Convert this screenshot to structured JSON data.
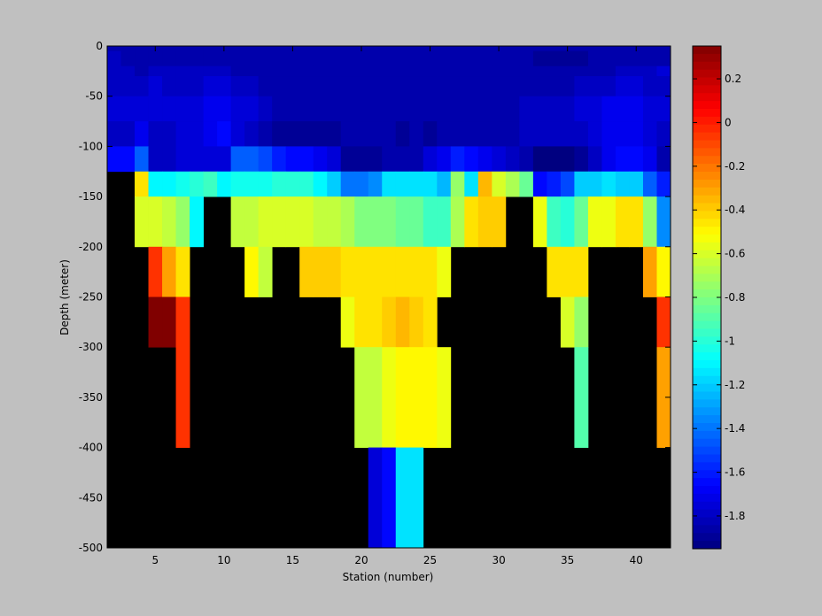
{
  "chart_data": {
    "type": "heatmap",
    "xlabel": "Station (number)",
    "ylabel": "Depth (meter)",
    "xlim": [
      1.5,
      42.5
    ],
    "ylim": [
      -500,
      0
    ],
    "x_ticks": [
      5,
      10,
      15,
      20,
      25,
      30,
      35,
      40
    ],
    "y_ticks": [
      0,
      -50,
      -100,
      -150,
      -200,
      -250,
      -300,
      -350,
      -400,
      -450,
      -500
    ],
    "colorbar": {
      "range": [
        -1.95,
        0.35
      ],
      "ticks": [
        0.2,
        0,
        -0.2,
        -0.4,
        -0.6,
        -0.8,
        -1,
        -1.2,
        -1.4,
        -1.6,
        -1.8
      ],
      "colormap": "jet"
    },
    "nan_color": "#000000",
    "stations": [
      2,
      3,
      4,
      5,
      6,
      7,
      8,
      9,
      10,
      11,
      12,
      13,
      14,
      15,
      16,
      17,
      18,
      19,
      20,
      21,
      22,
      23,
      24,
      25,
      26,
      27,
      28,
      29,
      30,
      31,
      32,
      33,
      34,
      35,
      36,
      37,
      38,
      39,
      40,
      41,
      42
    ],
    "depth_bins": [
      {
        "top": 0,
        "bottom": -5
      },
      {
        "top": -5,
        "bottom": -20
      },
      {
        "top": -20,
        "bottom": -30
      },
      {
        "top": -30,
        "bottom": -50
      },
      {
        "top": -50,
        "bottom": -75
      },
      {
        "top": -75,
        "bottom": -100
      },
      {
        "top": -100,
        "bottom": -125
      },
      {
        "top": -125,
        "bottom": -150
      },
      {
        "top": -150,
        "bottom": -200
      },
      {
        "top": -200,
        "bottom": -250
      },
      {
        "top": -250,
        "bottom": -300
      },
      {
        "top": -300,
        "bottom": -400
      },
      {
        "top": -400,
        "bottom": -500
      }
    ],
    "values": [
      [
        -1.85,
        -1.85,
        -1.85,
        -1.85,
        -1.85,
        -1.85,
        -1.85,
        -1.85,
        -1.85,
        -1.85,
        -1.85,
        -1.85,
        -1.85,
        -1.85,
        -1.85,
        -1.85,
        -1.85,
        -1.85,
        -1.85,
        -1.85,
        -1.85,
        -1.85,
        -1.85,
        -1.85,
        -1.85,
        -1.85,
        -1.85,
        -1.85,
        -1.85,
        -1.85,
        -1.85,
        -1.85,
        -1.85,
        -1.85,
        -1.85,
        -1.85,
        -1.85,
        -1.85,
        -1.85,
        -1.85,
        -1.85
      ],
      [
        -1.8,
        -1.85,
        -1.85,
        -1.85,
        -1.85,
        -1.85,
        -1.85,
        -1.85,
        -1.85,
        -1.85,
        -1.85,
        -1.85,
        -1.85,
        -1.85,
        -1.85,
        -1.85,
        -1.85,
        -1.85,
        -1.85,
        -1.85,
        -1.85,
        -1.85,
        -1.85,
        -1.85,
        -1.85,
        -1.85,
        -1.85,
        -1.85,
        -1.85,
        -1.85,
        -1.85,
        -1.9,
        -1.9,
        -1.9,
        -1.9,
        -1.85,
        -1.85,
        -1.85,
        -1.85,
        -1.85,
        -1.85
      ],
      [
        -1.8,
        -1.8,
        -1.85,
        -1.8,
        -1.8,
        -1.8,
        -1.8,
        -1.8,
        -1.8,
        -1.85,
        -1.85,
        -1.85,
        -1.85,
        -1.85,
        -1.85,
        -1.85,
        -1.85,
        -1.85,
        -1.85,
        -1.85,
        -1.85,
        -1.85,
        -1.85,
        -1.85,
        -1.85,
        -1.85,
        -1.85,
        -1.85,
        -1.85,
        -1.85,
        -1.85,
        -1.85,
        -1.85,
        -1.85,
        -1.85,
        -1.85,
        -1.85,
        -1.8,
        -1.8,
        -1.8,
        -1.75
      ],
      [
        -1.8,
        -1.8,
        -1.8,
        -1.75,
        -1.8,
        -1.8,
        -1.8,
        -1.75,
        -1.75,
        -1.8,
        -1.8,
        -1.85,
        -1.85,
        -1.85,
        -1.85,
        -1.85,
        -1.85,
        -1.85,
        -1.85,
        -1.85,
        -1.85,
        -1.85,
        -1.85,
        -1.85,
        -1.85,
        -1.85,
        -1.85,
        -1.85,
        -1.85,
        -1.85,
        -1.85,
        -1.85,
        -1.85,
        -1.85,
        -1.8,
        -1.8,
        -1.8,
        -1.75,
        -1.75,
        -1.8,
        -1.8
      ],
      [
        -1.75,
        -1.75,
        -1.75,
        -1.75,
        -1.75,
        -1.75,
        -1.75,
        -1.7,
        -1.7,
        -1.75,
        -1.75,
        -1.8,
        -1.85,
        -1.85,
        -1.85,
        -1.85,
        -1.85,
        -1.85,
        -1.85,
        -1.85,
        -1.85,
        -1.85,
        -1.85,
        -1.85,
        -1.85,
        -1.85,
        -1.85,
        -1.85,
        -1.85,
        -1.85,
        -1.8,
        -1.8,
        -1.8,
        -1.8,
        -1.75,
        -1.75,
        -1.7,
        -1.7,
        -1.7,
        -1.75,
        -1.75
      ],
      [
        -1.8,
        -1.8,
        -1.7,
        -1.8,
        -1.8,
        -1.75,
        -1.75,
        -1.7,
        -1.65,
        -1.75,
        -1.8,
        -1.85,
        -1.9,
        -1.9,
        -1.9,
        -1.9,
        -1.9,
        -1.85,
        -1.85,
        -1.85,
        -1.85,
        -1.9,
        -1.85,
        -1.9,
        -1.85,
        -1.85,
        -1.85,
        -1.85,
        -1.85,
        -1.85,
        -1.8,
        -1.8,
        -1.8,
        -1.8,
        -1.8,
        -1.75,
        -1.7,
        -1.7,
        -1.7,
        -1.75,
        -1.8
      ],
      [
        -1.65,
        -1.65,
        -1.45,
        -1.8,
        -1.8,
        -1.75,
        -1.75,
        -1.75,
        -1.75,
        -1.45,
        -1.45,
        -1.5,
        -1.6,
        -1.65,
        -1.65,
        -1.7,
        -1.75,
        -1.9,
        -1.9,
        -1.9,
        -1.85,
        -1.85,
        -1.85,
        -1.75,
        -1.7,
        -1.6,
        -1.65,
        -1.7,
        -1.75,
        -1.8,
        -1.85,
        -1.95,
        -1.95,
        -1.95,
        -1.9,
        -1.8,
        -1.7,
        -1.65,
        -1.65,
        -1.7,
        -1.85
      ],
      [
        null,
        null,
        -0.45,
        -1.1,
        -1.1,
        -1.05,
        -1.0,
        -0.95,
        -1.1,
        -1.05,
        -1.05,
        -1.05,
        -1.0,
        -1.0,
        -1.0,
        -1.1,
        -1.2,
        -1.4,
        -1.4,
        -1.35,
        -1.15,
        -1.15,
        -1.15,
        -1.15,
        -1.25,
        -0.75,
        -1.15,
        -0.35,
        -0.6,
        -0.7,
        -0.85,
        -1.65,
        -1.6,
        -1.5,
        -1.2,
        -1.2,
        -1.15,
        -1.2,
        -1.2,
        -1.45,
        -1.6
      ],
      [
        null,
        null,
        -0.6,
        -0.6,
        -0.65,
        -0.75,
        -1.1,
        null,
        null,
        -0.65,
        -0.65,
        -0.6,
        -0.6,
        -0.6,
        -0.6,
        -0.65,
        -0.65,
        -0.7,
        -0.8,
        -0.8,
        -0.8,
        -0.85,
        -0.85,
        -0.95,
        -0.95,
        -0.7,
        -0.45,
        -0.4,
        -0.4,
        null,
        null,
        -0.55,
        -0.95,
        -1.0,
        -0.85,
        -0.55,
        -0.55,
        -0.45,
        -0.45,
        -0.75,
        -1.35
      ],
      [
        null,
        null,
        null,
        -0.05,
        -0.3,
        -0.45,
        null,
        null,
        null,
        null,
        -0.5,
        -0.65,
        null,
        null,
        -0.4,
        -0.4,
        -0.4,
        -0.45,
        -0.45,
        -0.45,
        -0.45,
        -0.45,
        -0.45,
        -0.45,
        -0.55,
        null,
        null,
        null,
        null,
        null,
        null,
        null,
        -0.45,
        -0.45,
        -0.45,
        null,
        null,
        null,
        null,
        -0.3,
        -0.5
      ],
      [
        null,
        null,
        null,
        0.35,
        0.35,
        -0.05,
        null,
        null,
        null,
        null,
        null,
        null,
        null,
        null,
        null,
        null,
        null,
        -0.55,
        -0.45,
        -0.45,
        -0.4,
        -0.35,
        -0.4,
        -0.45,
        null,
        null,
        null,
        null,
        null,
        null,
        null,
        null,
        null,
        -0.6,
        -0.75,
        null,
        null,
        null,
        null,
        null,
        -0.05
      ],
      [
        null,
        null,
        null,
        null,
        null,
        -0.05,
        null,
        null,
        null,
        null,
        null,
        null,
        null,
        null,
        null,
        null,
        null,
        null,
        -0.65,
        -0.65,
        -0.55,
        -0.5,
        -0.5,
        -0.5,
        -0.55,
        null,
        null,
        null,
        null,
        null,
        null,
        null,
        null,
        null,
        -0.9,
        null,
        null,
        null,
        null,
        null,
        -0.3
      ],
      [
        null,
        null,
        null,
        null,
        null,
        null,
        null,
        null,
        null,
        null,
        null,
        null,
        null,
        null,
        null,
        null,
        null,
        null,
        null,
        -1.75,
        -1.65,
        -1.15,
        -1.15,
        null,
        null,
        null,
        null,
        null,
        null,
        null,
        null,
        null,
        null,
        null,
        null,
        null,
        null,
        null,
        null,
        null,
        null
      ]
    ]
  }
}
